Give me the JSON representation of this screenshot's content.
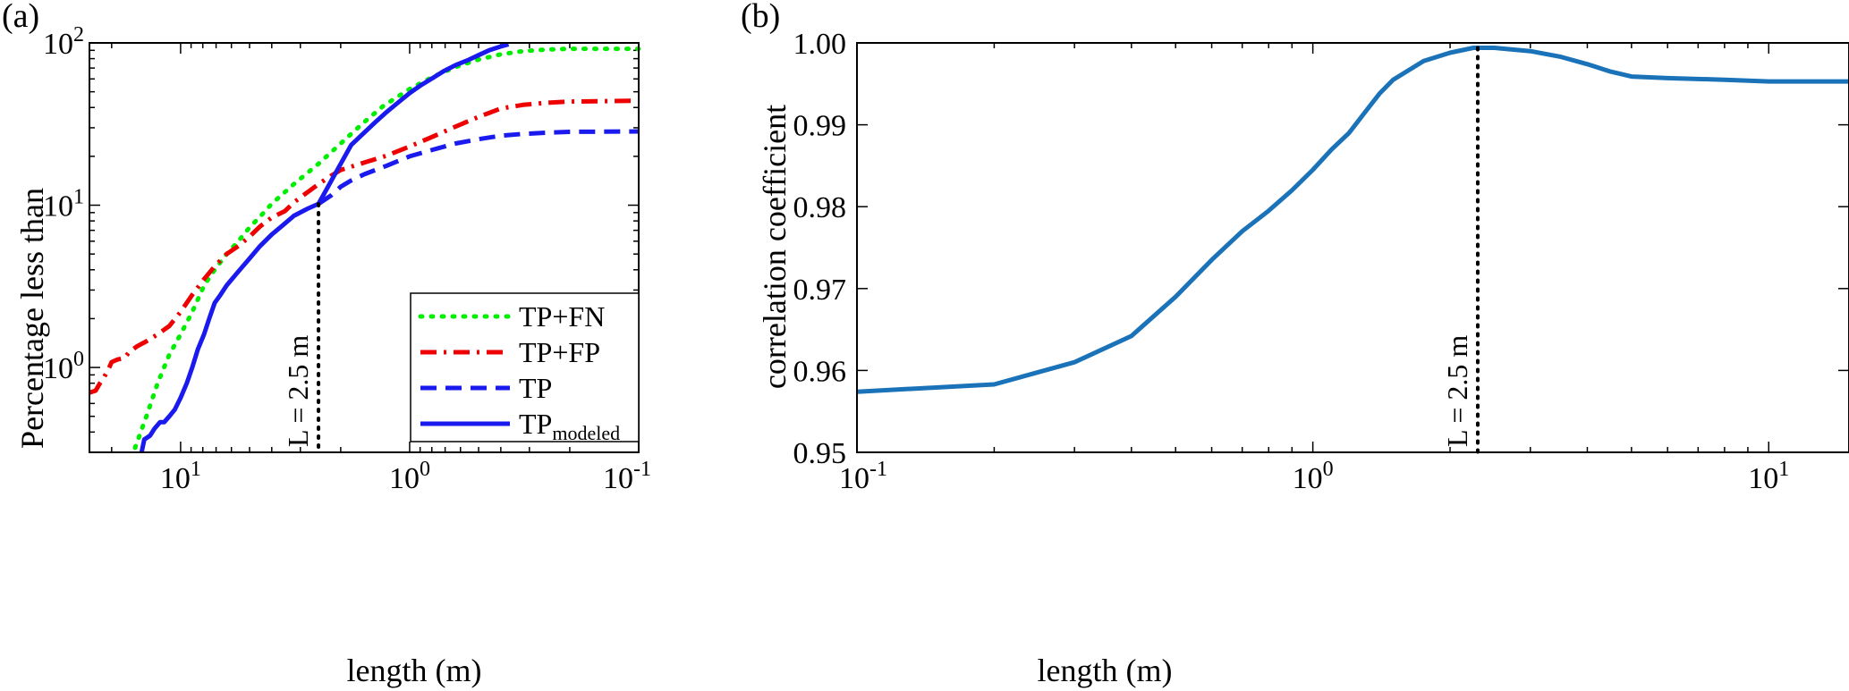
{
  "panels": [
    {
      "id": "a",
      "label": "(a)"
    },
    {
      "id": "b",
      "label": "(b)"
    }
  ],
  "chart_data": [
    {
      "type": "line",
      "panel": "(a)",
      "xlabel": "length (m)",
      "ylabel": "Percentage less than",
      "xscale": "log",
      "yscale": "log",
      "x_direction": "reversed",
      "xlim": [
        25,
        0.1
      ],
      "ylim": [
        0.3,
        100
      ],
      "xticks": [
        {
          "value": 10,
          "base": "10",
          "exp": "1"
        },
        {
          "value": 1,
          "base": "10",
          "exp": "0"
        },
        {
          "value": 0.1,
          "base": "10",
          "exp": "-1"
        }
      ],
      "yticks": [
        {
          "value": 1,
          "base": "10",
          "exp": "0"
        },
        {
          "value": 10,
          "base": "10",
          "exp": "1"
        },
        {
          "value": 100,
          "base": "10",
          "exp": "2"
        }
      ],
      "grid": false,
      "legend_position": "bottom-right",
      "series": [
        {
          "name": "TP+FN",
          "name_sub": "",
          "color": "#00ee00",
          "style": "dotted",
          "points": [
            [
              15.8,
              0.32
            ],
            [
              14.1,
              0.5
            ],
            [
              12.6,
              0.8
            ],
            [
              11.2,
              1.2
            ],
            [
              10,
              1.6
            ],
            [
              8.9,
              2.2
            ],
            [
              7.9,
              3.2
            ],
            [
              7.1,
              4.0
            ],
            [
              6.3,
              5.0
            ],
            [
              5.6,
              6.0
            ],
            [
              5.0,
              7.3
            ],
            [
              4.5,
              8.5
            ],
            [
              4.0,
              10.2
            ],
            [
              3.2,
              13.5
            ],
            [
              2.5,
              18
            ],
            [
              2.0,
              24
            ],
            [
              1.6,
              32
            ],
            [
              1.3,
              41
            ],
            [
              1.0,
              52
            ],
            [
              0.79,
              62
            ],
            [
              0.63,
              71
            ],
            [
              0.5,
              79
            ],
            [
              0.4,
              85
            ],
            [
              0.32,
              89
            ],
            [
              0.25,
              91
            ],
            [
              0.2,
              92
            ],
            [
              0.1,
              92
            ]
          ]
        },
        {
          "name": "TP+FP",
          "name_sub": "",
          "color": "#ee0000",
          "style": "dashdot",
          "points": [
            [
              25,
              0.7
            ],
            [
              23.5,
              0.72
            ],
            [
              22.5,
              0.8
            ],
            [
              21.5,
              0.88
            ],
            [
              20.5,
              1.0
            ],
            [
              20,
              1.08
            ],
            [
              18.8,
              1.12
            ],
            [
              17.6,
              1.14
            ],
            [
              16.8,
              1.24
            ],
            [
              15.5,
              1.35
            ],
            [
              14.1,
              1.45
            ],
            [
              12.6,
              1.6
            ],
            [
              11.2,
              1.8
            ],
            [
              10,
              2.2
            ],
            [
              8.9,
              2.8
            ],
            [
              7.9,
              3.5
            ],
            [
              7.1,
              4.2
            ],
            [
              6.3,
              5.0
            ],
            [
              5.6,
              5.6
            ],
            [
              5.0,
              6.4
            ],
            [
              4.5,
              7.4
            ],
            [
              4.0,
              8.4
            ],
            [
              3.5,
              9.2
            ],
            [
              3.2,
              10.4
            ],
            [
              2.8,
              12.0
            ],
            [
              2.5,
              13.5
            ],
            [
              2.2,
              15.2
            ],
            [
              2.0,
              16.5
            ],
            [
              1.58,
              18.3
            ],
            [
              1.26,
              20.2
            ],
            [
              1.0,
              23.0
            ],
            [
              0.79,
              26.5
            ],
            [
              0.63,
              30.5
            ],
            [
              0.5,
              35
            ],
            [
              0.4,
              39.4
            ],
            [
              0.32,
              41.5
            ],
            [
              0.25,
              42.8
            ],
            [
              0.2,
              43.5
            ],
            [
              0.1,
              44
            ]
          ]
        },
        {
          "name": "TP",
          "name_sub": "",
          "color": "#1a1aee",
          "style": "dashed",
          "points": [
            [
              2.5,
              10.2
            ],
            [
              2.2,
              11.5
            ],
            [
              2.0,
              13.0
            ],
            [
              1.8,
              14.2
            ],
            [
              1.58,
              15.5
            ],
            [
              1.26,
              17.5
            ],
            [
              1.0,
              20.0
            ],
            [
              0.79,
              22.0
            ],
            [
              0.63,
              24.0
            ],
            [
              0.5,
              25.5
            ],
            [
              0.4,
              26.8
            ],
            [
              0.32,
              27.5
            ],
            [
              0.25,
              28
            ],
            [
              0.2,
              28.3
            ],
            [
              0.1,
              28.5
            ]
          ]
        },
        {
          "name": "TP",
          "name_sub": "modeled",
          "color": "#1a1aee",
          "style": "solid",
          "points": [
            [
              14.8,
              0.3
            ],
            [
              14.4,
              0.36
            ],
            [
              13.6,
              0.38
            ],
            [
              13.0,
              0.42
            ],
            [
              12.3,
              0.46
            ],
            [
              11.8,
              0.46
            ],
            [
              11.2,
              0.5
            ],
            [
              10.6,
              0.55
            ],
            [
              10.0,
              0.65
            ],
            [
              9.4,
              0.8
            ],
            [
              8.9,
              1.0
            ],
            [
              8.4,
              1.3
            ],
            [
              7.9,
              1.6
            ],
            [
              7.5,
              2.0
            ],
            [
              7.1,
              2.5
            ],
            [
              6.7,
              2.8
            ],
            [
              6.3,
              3.2
            ],
            [
              5.6,
              3.9
            ],
            [
              5.0,
              4.7
            ],
            [
              4.5,
              5.6
            ],
            [
              4.0,
              6.6
            ],
            [
              3.55,
              7.6
            ],
            [
              3.2,
              8.6
            ],
            [
              2.8,
              9.5
            ],
            [
              2.5,
              10.2
            ],
            [
              2.24,
              13.5
            ],
            [
              2.0,
              18
            ],
            [
              1.8,
              23.5
            ],
            [
              1.58,
              28
            ],
            [
              1.41,
              32.5
            ],
            [
              1.26,
              37.5
            ],
            [
              1.12,
              43
            ],
            [
              1.0,
              49
            ],
            [
              0.89,
              55
            ],
            [
              0.79,
              61
            ],
            [
              0.71,
              67
            ],
            [
              0.63,
              73
            ],
            [
              0.56,
              78
            ],
            [
              0.5,
              84
            ],
            [
              0.45,
              90
            ],
            [
              0.4,
              95
            ],
            [
              0.37,
              98
            ]
          ]
        }
      ],
      "annotations": [
        {
          "text": "L = 2.5 m",
          "x": 2.5,
          "kind": "vertical-dotted-line"
        }
      ]
    },
    {
      "type": "line",
      "panel": "(b)",
      "xlabel": "length (m)",
      "ylabel": "correlation coefficient",
      "xscale": "log",
      "yscale": "linear",
      "xlim": [
        0.1,
        15
      ],
      "ylim": [
        0.95,
        1.0
      ],
      "xticks": [
        {
          "value": 0.1,
          "base": "10",
          "exp": "-1"
        },
        {
          "value": 1,
          "base": "10",
          "exp": "0"
        },
        {
          "value": 10,
          "base": "10",
          "exp": "1"
        }
      ],
      "yticks": [
        "0.95",
        "0.96",
        "0.97",
        "0.98",
        "0.99",
        "1.00"
      ],
      "grid": false,
      "series": [
        {
          "name": "",
          "color": "#1a72b8",
          "style": "solid",
          "points": [
            [
              0.1,
              0.9574
            ],
            [
              0.2,
              0.9583
            ],
            [
              0.3,
              0.961
            ],
            [
              0.4,
              0.9642
            ],
            [
              0.5,
              0.969
            ],
            [
              0.6,
              0.9735
            ],
            [
              0.7,
              0.977
            ],
            [
              0.8,
              0.9795
            ],
            [
              0.9,
              0.982
            ],
            [
              1.0,
              0.9845
            ],
            [
              1.1,
              0.987
            ],
            [
              1.2,
              0.989
            ],
            [
              1.3,
              0.9915
            ],
            [
              1.4,
              0.9938
            ],
            [
              1.5,
              0.9955
            ],
            [
              1.75,
              0.9978
            ],
            [
              2.0,
              0.9988
            ],
            [
              2.25,
              0.9994
            ],
            [
              2.5,
              0.9994
            ],
            [
              3.0,
              0.999
            ],
            [
              3.5,
              0.9983
            ],
            [
              4.0,
              0.9974
            ],
            [
              4.5,
              0.9965
            ],
            [
              5.0,
              0.9959
            ],
            [
              6.0,
              0.9957
            ],
            [
              8.0,
              0.9955
            ],
            [
              10,
              0.9953
            ],
            [
              15,
              0.9953
            ]
          ]
        }
      ],
      "annotations": [
        {
          "text": "L = 2.5 m",
          "x": 2.3,
          "kind": "vertical-dotted-line"
        }
      ]
    }
  ]
}
